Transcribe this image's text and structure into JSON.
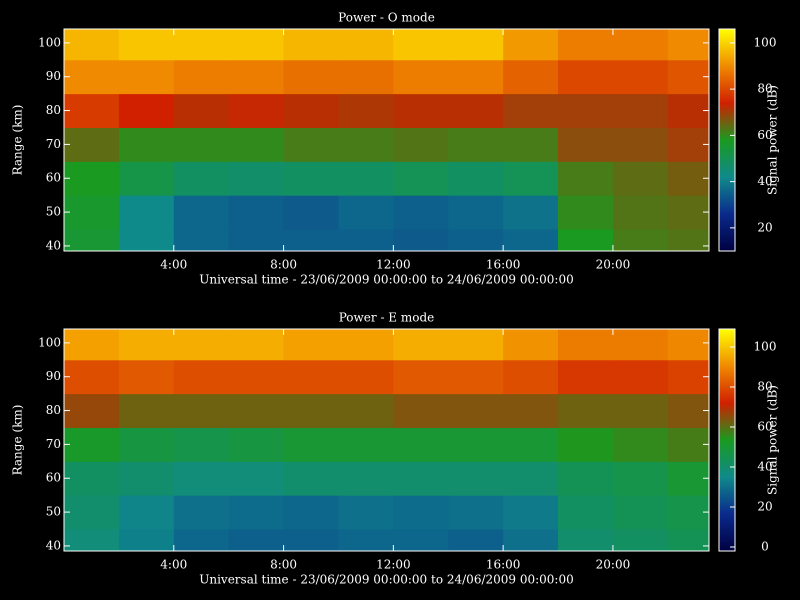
{
  "chart_data": [
    {
      "type": "heatmap",
      "title": "Power - O mode",
      "x_label": "Universal time - 23/06/2009 00:00:00 to 24/06/2009 00:00:00",
      "y_label": "Range (km)",
      "colorbar_label": "Signal power (dB)",
      "x": [
        0,
        2,
        4,
        6,
        8,
        10,
        12,
        14,
        16,
        18,
        20,
        22,
        23.5
      ],
      "y": [
        38.5,
        45,
        55,
        65,
        75,
        85,
        95,
        104.1
      ],
      "z": [
        [
          55,
          42,
          36,
          35,
          35,
          35,
          34,
          35,
          36,
          58,
          62,
          63
        ],
        [
          56,
          42,
          36,
          35,
          34,
          36,
          35,
          36,
          38,
          60,
          63,
          64
        ],
        [
          58,
          52,
          48,
          47,
          48,
          48,
          50,
          48,
          50,
          62,
          64,
          66
        ],
        [
          64,
          60,
          60,
          60,
          62,
          62,
          63,
          62,
          62,
          68,
          68,
          70
        ],
        [
          78,
          74,
          72,
          73,
          72,
          71,
          72,
          72,
          70,
          70,
          70,
          72
        ],
        [
          90,
          90,
          88,
          88,
          86,
          86,
          88,
          88,
          84,
          80,
          80,
          82
        ],
        [
          96,
          98,
          98,
          98,
          96,
          96,
          98,
          98,
          92,
          88,
          88,
          90
        ]
      ],
      "xlim": [
        0,
        23.5
      ],
      "xticks": [
        {
          "value": 4,
          "label": "4:00"
        },
        {
          "value": 8,
          "label": "8:00"
        },
        {
          "value": 12,
          "label": "12:00"
        },
        {
          "value": 16,
          "label": "16:00"
        },
        {
          "value": 20,
          "label": "20:00"
        }
      ],
      "ylim": [
        38.5,
        104.1
      ],
      "yticks": [
        40,
        50,
        60,
        70,
        80,
        90,
        100
      ],
      "clim": [
        10,
        106
      ],
      "cticks": [
        20,
        40,
        60,
        80,
        100
      ],
      "colormap": [
        "#000040",
        "#0a2a8c",
        "#0f8a8a",
        "#1a9a20",
        "#d02000",
        "#f08a00",
        "#ffff00"
      ]
    },
    {
      "type": "heatmap",
      "title": "Power - E mode",
      "x_label": "Universal time - 23/06/2009 00:00:00 to 24/06/2009 00:00:00",
      "y_label": "Range (km)",
      "colorbar_label": "Signal power (dB)",
      "x": [
        0,
        2,
        4,
        6,
        8,
        10,
        12,
        14,
        16,
        18,
        20,
        22,
        23.5
      ],
      "y": [
        38.5,
        45,
        55,
        65,
        75,
        85,
        95,
        104.1
      ],
      "z": [
        [
          38,
          33,
          28,
          27,
          27,
          28,
          28,
          27,
          30,
          40,
          42,
          44
        ],
        [
          40,
          34,
          30,
          29,
          28,
          30,
          29,
          30,
          32,
          42,
          44,
          46
        ],
        [
          42,
          40,
          38,
          38,
          40,
          40,
          40,
          40,
          40,
          44,
          46,
          50
        ],
        [
          52,
          48,
          46,
          48,
          50,
          50,
          50,
          50,
          50,
          54,
          56,
          58
        ],
        [
          66,
          62,
          62,
          62,
          62,
          62,
          64,
          64,
          64,
          62,
          62,
          64
        ],
        [
          80,
          82,
          80,
          80,
          80,
          80,
          82,
          82,
          80,
          76,
          76,
          78
        ],
        [
          94,
          96,
          96,
          96,
          94,
          94,
          96,
          96,
          92,
          88,
          88,
          90
        ]
      ],
      "xlim": [
        0,
        23.5
      ],
      "xticks": [
        {
          "value": 4,
          "label": "4:00"
        },
        {
          "value": 8,
          "label": "8:00"
        },
        {
          "value": 12,
          "label": "12:00"
        },
        {
          "value": 16,
          "label": "16:00"
        },
        {
          "value": 20,
          "label": "20:00"
        }
      ],
      "ylim": [
        38.5,
        104.1
      ],
      "yticks": [
        40,
        50,
        60,
        70,
        80,
        90,
        100
      ],
      "clim": [
        -2,
        109
      ],
      "cticks": [
        0,
        20,
        40,
        60,
        80,
        100
      ],
      "colormap": [
        "#000040",
        "#0a2a8c",
        "#0f8a8a",
        "#1a9a20",
        "#d02000",
        "#f08a00",
        "#ffff00"
      ]
    }
  ]
}
